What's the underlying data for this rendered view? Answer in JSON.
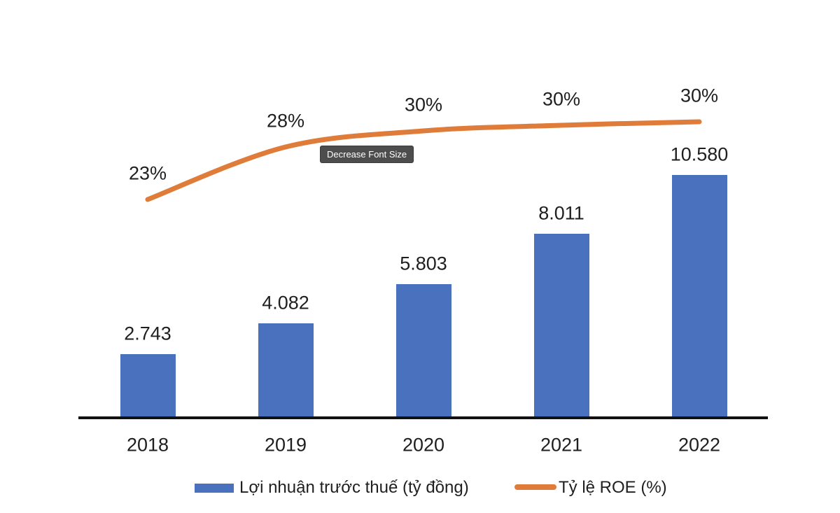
{
  "chart_data": {
    "type": "combo-bar-line",
    "title": "",
    "categories": [
      "2018",
      "2019",
      "2020",
      "2021",
      "2022"
    ],
    "series": [
      {
        "name": "Lợi nhuận trước thuế (tỷ đồng)",
        "type": "bar",
        "values": [
          2743,
          4082,
          5803,
          8011,
          10580
        ],
        "data_labels": [
          "2.743",
          "4.082",
          "5.803",
          "8.011",
          "10.580"
        ],
        "color": "#4A71BE"
      },
      {
        "name": "Tỷ lệ ROE (%)",
        "type": "line",
        "values": [
          23,
          28,
          30,
          30,
          30
        ],
        "data_labels": [
          "23%",
          "28%",
          "30%",
          "30%",
          "30%"
        ],
        "color": "#E07C3A"
      }
    ],
    "ylim": [
      0,
      10580
    ],
    "grid": false,
    "legend_position": "bottom"
  },
  "legend": {
    "bar_label": "Lợi nhuận trước thuế (tỷ đồng)",
    "line_label": "Tỷ lệ ROE (%)"
  },
  "tooltip": {
    "text": "Decrease Font Size"
  },
  "colors": {
    "bar": "#4A71BE",
    "line": "#E07C3A",
    "axis": "#111111",
    "label_text": "#1F1F1F",
    "tooltip_bg": "#4D4D4D",
    "tooltip_text": "#FFFFFF",
    "background": "#FFFFFF"
  }
}
